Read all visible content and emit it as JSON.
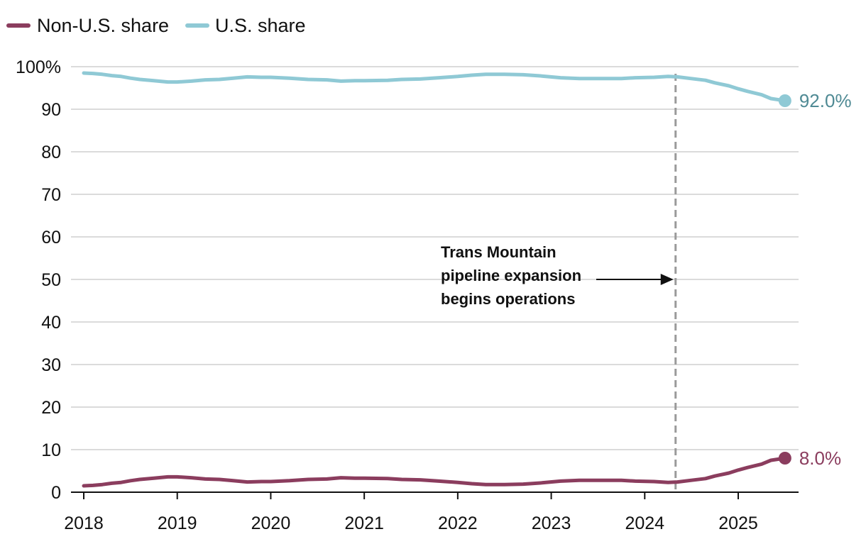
{
  "chart_data": {
    "type": "line",
    "title": "",
    "xlabel": "",
    "ylabel": "",
    "ylim": [
      0,
      100
    ],
    "xlim": [
      2018.0,
      2025.75
    ],
    "y_ticks": [
      0,
      10,
      20,
      30,
      40,
      50,
      60,
      70,
      80,
      90,
      100
    ],
    "y_tick_labels": [
      "0",
      "10",
      "20",
      "30",
      "40",
      "50",
      "60",
      "70",
      "80",
      "90",
      "100%"
    ],
    "x_ticks": [
      2018,
      2019,
      2020,
      2021,
      2022,
      2023,
      2024,
      2025
    ],
    "x_tick_labels": [
      "2018",
      "2019",
      "2020",
      "2021",
      "2022",
      "2023",
      "2024",
      "2025"
    ],
    "grid": true,
    "legend": {
      "placement": "top-left"
    },
    "series": [
      {
        "name": "Non-U.S. share",
        "color": "#8b3d5e",
        "end_label": "8.0%",
        "x": [
          2018.0,
          2018.1,
          2018.2,
          2018.3,
          2018.4,
          2018.5,
          2018.6,
          2018.75,
          2018.9,
          2019.0,
          2019.15,
          2019.3,
          2019.45,
          2019.6,
          2019.75,
          2019.9,
          2020.0,
          2020.2,
          2020.4,
          2020.6,
          2020.75,
          2020.9,
          2021.0,
          2021.25,
          2021.4,
          2021.6,
          2021.8,
          2022.0,
          2022.15,
          2022.3,
          2022.5,
          2022.7,
          2022.9,
          2023.1,
          2023.3,
          2023.5,
          2023.75,
          2023.9,
          2024.1,
          2024.25,
          2024.35,
          2024.5,
          2024.65,
          2024.75,
          2024.9,
          2025.0,
          2025.1,
          2025.25,
          2025.35,
          2025.5
        ],
        "values": [
          1.5,
          1.6,
          1.8,
          2.1,
          2.3,
          2.7,
          3.0,
          3.3,
          3.6,
          3.6,
          3.4,
          3.1,
          3.0,
          2.7,
          2.4,
          2.5,
          2.5,
          2.7,
          3.0,
          3.1,
          3.4,
          3.3,
          3.3,
          3.2,
          3.0,
          2.9,
          2.6,
          2.3,
          2.0,
          1.8,
          1.8,
          1.9,
          2.2,
          2.6,
          2.8,
          2.8,
          2.8,
          2.6,
          2.5,
          2.3,
          2.4,
          2.8,
          3.2,
          3.8,
          4.5,
          5.2,
          5.8,
          6.6,
          7.5,
          8.0
        ]
      },
      {
        "name": "U.S. share",
        "color": "#8fc9d5",
        "end_label": "92.0%",
        "x": [
          2018.0,
          2018.1,
          2018.2,
          2018.3,
          2018.4,
          2018.5,
          2018.6,
          2018.75,
          2018.9,
          2019.0,
          2019.15,
          2019.3,
          2019.45,
          2019.6,
          2019.75,
          2019.9,
          2020.0,
          2020.2,
          2020.4,
          2020.6,
          2020.75,
          2020.9,
          2021.0,
          2021.25,
          2021.4,
          2021.6,
          2021.8,
          2022.0,
          2022.15,
          2022.3,
          2022.5,
          2022.7,
          2022.9,
          2023.1,
          2023.3,
          2023.5,
          2023.75,
          2023.9,
          2024.1,
          2024.25,
          2024.35,
          2024.5,
          2024.65,
          2024.75,
          2024.9,
          2025.0,
          2025.1,
          2025.25,
          2025.35,
          2025.5
        ],
        "values": [
          98.5,
          98.4,
          98.2,
          97.9,
          97.7,
          97.3,
          97.0,
          96.7,
          96.4,
          96.4,
          96.6,
          96.9,
          97.0,
          97.3,
          97.6,
          97.5,
          97.5,
          97.3,
          97.0,
          96.9,
          96.6,
          96.7,
          96.7,
          96.8,
          97.0,
          97.1,
          97.4,
          97.7,
          98.0,
          98.2,
          98.2,
          98.1,
          97.8,
          97.4,
          97.2,
          97.2,
          97.2,
          97.4,
          97.5,
          97.7,
          97.6,
          97.2,
          96.8,
          96.2,
          95.5,
          94.8,
          94.2,
          93.4,
          92.5,
          92.0
        ]
      }
    ],
    "annotations": [
      {
        "text_lines": [
          "Trans Mountain",
          "pipeline expansion",
          "begins operations"
        ],
        "x": 2024.33,
        "style": "dashed vertical line with arrow"
      }
    ]
  }
}
